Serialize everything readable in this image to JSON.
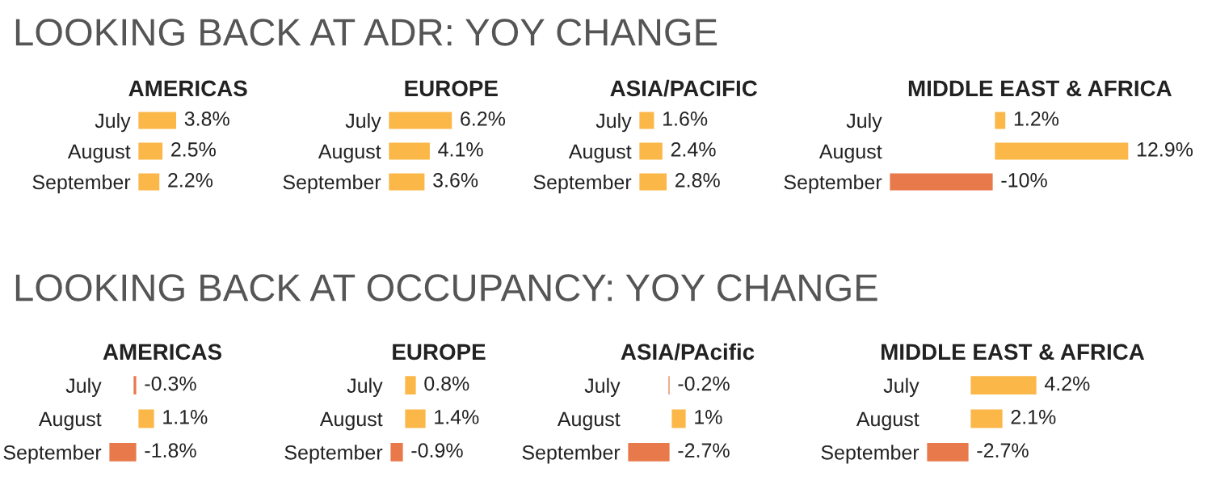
{
  "chart_data": [
    {
      "type": "bar",
      "orientation": "horizontal",
      "title": "AMERICAS",
      "annotations": [
        "LOOKING BACK AT ADR: YOY CHANGE"
      ],
      "categories": [
        "July",
        "August",
        "September"
      ],
      "values": [
        3.8,
        2.5,
        2.2
      ],
      "colors": [
        "#fbb748",
        "#fbb748",
        "#fbb748"
      ],
      "value_labels": [
        "3.8%",
        "2.5%",
        "2.2%"
      ]
    },
    {
      "type": "bar",
      "orientation": "horizontal",
      "title": "EUROPE",
      "categories": [
        "July",
        "August",
        "September"
      ],
      "values": [
        6.2,
        4.1,
        3.6
      ],
      "colors": [
        "#fbb748",
        "#fbb748",
        "#fbb748"
      ],
      "value_labels": [
        "6.2%",
        "4.1%",
        "3.6%"
      ]
    },
    {
      "type": "bar",
      "orientation": "horizontal",
      "title": "ASIA/PACIFIC",
      "categories": [
        "July",
        "August",
        "September"
      ],
      "values": [
        1.6,
        2.4,
        2.8
      ],
      "colors": [
        "#fbb748",
        "#fbb748",
        "#fbb748"
      ],
      "value_labels": [
        "1.6%",
        "2.4%",
        "2.8%"
      ]
    },
    {
      "type": "bar",
      "orientation": "horizontal",
      "title": "MIDDLE EAST & AFRICA",
      "categories": [
        "July",
        "August",
        "September"
      ],
      "values": [
        1.2,
        12.9,
        -10
      ],
      "colors": [
        "#fbb748",
        "#fbb748",
        "#e8794a"
      ],
      "value_labels": [
        "1.2%",
        "12.9%",
        "-10%"
      ]
    },
    {
      "type": "bar",
      "orientation": "horizontal",
      "title": "AMERICAS",
      "annotations": [
        "LOOKING BACK AT OCCUPANCY: YOY CHANGE"
      ],
      "categories": [
        "July",
        "August",
        "September"
      ],
      "values": [
        -0.3,
        1.1,
        -1.8
      ],
      "colors": [
        "#e8794a",
        "#fbb748",
        "#e8794a"
      ],
      "value_labels": [
        "-0.3%",
        "1.1%",
        "-1.8%"
      ]
    },
    {
      "type": "bar",
      "orientation": "horizontal",
      "title": "EUROPE",
      "categories": [
        "July",
        "August",
        "September"
      ],
      "values": [
        0.8,
        1.4,
        -0.9
      ],
      "colors": [
        "#fbb748",
        "#fbb748",
        "#e8794a"
      ],
      "value_labels": [
        "0.8%",
        "1.4%",
        "-0.9%"
      ]
    },
    {
      "type": "bar",
      "orientation": "horizontal",
      "title": "ASIA/PAcific",
      "categories": [
        "July",
        "August",
        "September"
      ],
      "values": [
        -0.2,
        1,
        -2.7
      ],
      "colors": [
        "#e8794a",
        "#fbb748",
        "#e8794a"
      ],
      "value_labels": [
        "-0.2%",
        "1%",
        "-2.7%"
      ]
    },
    {
      "type": "bar",
      "orientation": "horizontal",
      "title": "MIDDLE EAST & AFRICA",
      "categories": [
        "July",
        "August",
        "September"
      ],
      "values": [
        4.2,
        2.1,
        -2.7
      ],
      "colors": [
        "#fbb748",
        "#fbb748",
        "#e8794a"
      ],
      "value_labels": [
        "4.2%",
        "2.1%",
        "-2.7%"
      ]
    }
  ]
}
